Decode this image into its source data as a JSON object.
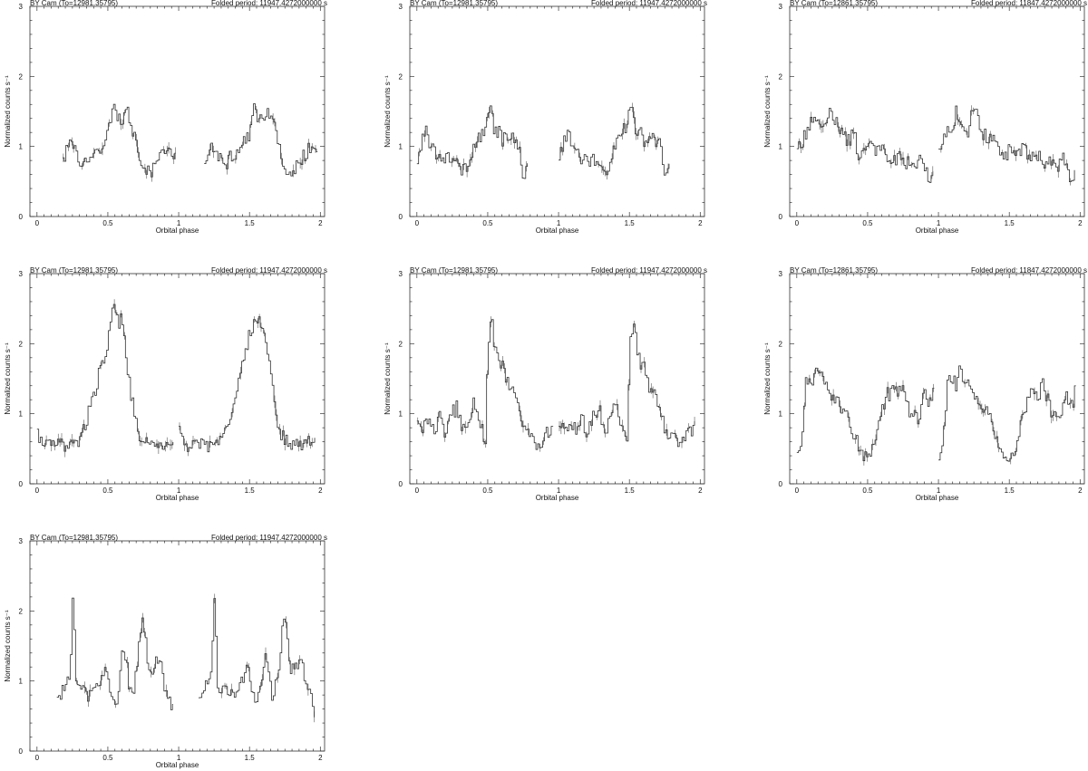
{
  "chart_data": [
    {
      "type": "line",
      "panel": 1,
      "title_left": "BY Cam (To=12981.35795)",
      "title_right": "Folded period: 11947.4272000000 s",
      "xlabel": "Orbital phase",
      "ylabel": "Normalized counts s⁻¹",
      "xlim": [
        -0.05,
        2.03
      ],
      "ylim": [
        0,
        3
      ],
      "x_ticks": [
        0,
        0.5,
        1,
        1.5,
        2
      ],
      "y_ticks": [
        0,
        1,
        2,
        3
      ],
      "x_tick_labels": [
        "0",
        "0.5",
        "1",
        "1.5",
        "2"
      ],
      "y_tick_labels": [
        "0",
        "1",
        "2",
        "3"
      ],
      "grid": false,
      "profile_phase": [
        0.18,
        0.2,
        0.23,
        0.26,
        0.29,
        0.32,
        0.35,
        0.38,
        0.41,
        0.44,
        0.47,
        0.5,
        0.53,
        0.56,
        0.59,
        0.62,
        0.65,
        0.68,
        0.71,
        0.74,
        0.77,
        0.8,
        0.83,
        0.86,
        0.89,
        0.92,
        0.95,
        0.98
      ],
      "profile_values": [
        0.85,
        0.9,
        1.0,
        0.95,
        0.85,
        0.75,
        0.8,
        0.9,
        0.85,
        0.95,
        1.1,
        1.2,
        1.5,
        1.45,
        1.35,
        1.5,
        1.4,
        1.2,
        1.0,
        0.7,
        0.65,
        0.6,
        0.75,
        0.8,
        0.9,
        1.0,
        0.95,
        0.85
      ]
    },
    {
      "type": "line",
      "panel": 2,
      "title_left": "BY Cam (To=12981.35795)",
      "title_right": "Folded period: 11947.4272000000 s",
      "xlabel": "Orbital phase",
      "ylabel": "Normalized counts s⁻¹",
      "xlim": [
        -0.05,
        2.03
      ],
      "ylim": [
        0,
        3
      ],
      "x_ticks": [
        0,
        0.5,
        1,
        1.5,
        2
      ],
      "y_ticks": [
        0,
        1,
        2,
        3
      ],
      "x_tick_labels": [
        "0",
        "0.5",
        "1",
        "1.5",
        "2"
      ],
      "y_tick_labels": [
        "0",
        "1",
        "2",
        "3"
      ],
      "grid": false,
      "profile_phase": [
        0.0,
        0.03,
        0.06,
        0.09,
        0.12,
        0.15,
        0.18,
        0.21,
        0.24,
        0.27,
        0.3,
        0.33,
        0.36,
        0.39,
        0.42,
        0.45,
        0.48,
        0.51,
        0.54,
        0.57,
        0.6,
        0.63,
        0.66,
        0.69,
        0.72,
        0.75,
        0.78
      ],
      "profile_values": [
        0.75,
        1.1,
        1.25,
        1.05,
        0.95,
        0.85,
        0.85,
        0.8,
        0.85,
        0.75,
        0.7,
        0.65,
        0.8,
        0.95,
        1.1,
        1.2,
        1.3,
        1.55,
        1.3,
        1.2,
        1.1,
        1.15,
        1.1,
        1.1,
        1.0,
        0.55,
        0.75
      ]
    },
    {
      "type": "line",
      "panel": 3,
      "title_left": "BY Cam (To=12861.35795)",
      "title_right": "Folded period: 11847.4272000000 s",
      "xlabel": "Orbital phase",
      "ylabel": "Normalized counts s⁻¹",
      "xlim": [
        -0.05,
        2.03
      ],
      "ylim": [
        0,
        3
      ],
      "x_ticks": [
        0,
        0.5,
        1,
        1.5,
        2
      ],
      "y_ticks": [
        0,
        1,
        2,
        3
      ],
      "x_tick_labels": [
        "0",
        "0.5",
        "1",
        "1.5",
        "2"
      ],
      "y_tick_labels": [
        "0",
        "1",
        "2",
        "3"
      ],
      "grid": false,
      "profile_phase": [
        0.0,
        0.04,
        0.08,
        0.12,
        0.16,
        0.2,
        0.24,
        0.28,
        0.32,
        0.36,
        0.4,
        0.44,
        0.48,
        0.52,
        0.56,
        0.6,
        0.64,
        0.68,
        0.72,
        0.76,
        0.8,
        0.84,
        0.88,
        0.92,
        0.96
      ],
      "profile_values": [
        0.95,
        1.1,
        1.3,
        1.45,
        1.3,
        1.2,
        1.55,
        1.35,
        1.15,
        1.1,
        1.15,
        0.85,
        0.9,
        1.0,
        0.95,
        1.0,
        0.85,
        0.8,
        0.85,
        0.75,
        0.8,
        0.7,
        0.85,
        0.55,
        0.6
      ]
    },
    {
      "type": "line",
      "panel": 4,
      "title_left": "BY Cam (To=12981.35795)",
      "title_right": "Folded period: 11947.4272000000 s",
      "xlabel": "Orbital phase",
      "ylabel": "Normalized counts s⁻¹",
      "xlim": [
        -0.05,
        2.03
      ],
      "ylim": [
        0,
        3
      ],
      "x_ticks": [
        0,
        0.5,
        1,
        1.5,
        2
      ],
      "y_ticks": [
        0,
        1,
        2,
        3
      ],
      "x_tick_labels": [
        "0",
        "0.5",
        "1",
        "1.5",
        "2"
      ],
      "y_tick_labels": [
        "0",
        "1",
        "2",
        "3"
      ],
      "grid": false,
      "profile_phase": [
        0.0,
        0.04,
        0.08,
        0.12,
        0.16,
        0.2,
        0.24,
        0.28,
        0.32,
        0.36,
        0.4,
        0.44,
        0.48,
        0.52,
        0.56,
        0.6,
        0.64,
        0.68,
        0.72,
        0.76,
        0.8,
        0.84,
        0.88,
        0.92,
        0.96
      ],
      "profile_values": [
        0.75,
        0.5,
        0.6,
        0.55,
        0.6,
        0.5,
        0.6,
        0.55,
        0.75,
        1.0,
        1.3,
        1.6,
        1.95,
        2.3,
        2.5,
        2.2,
        1.6,
        1.0,
        0.7,
        0.6,
        0.55,
        0.6,
        0.55,
        0.6,
        0.6
      ]
    },
    {
      "type": "line",
      "panel": 5,
      "title_left": "BY Cam (To=12981.35795)",
      "title_right": "Folded period: 11947.4272000000 s",
      "xlabel": "Orbital phase",
      "ylabel": "Normalized counts s⁻¹",
      "xlim": [
        -0.05,
        2.03
      ],
      "ylim": [
        0,
        3
      ],
      "x_ticks": [
        0,
        0.5,
        1,
        1.5,
        2
      ],
      "y_ticks": [
        0,
        1,
        2,
        3
      ],
      "x_tick_labels": [
        "0",
        "0.5",
        "1",
        "1.5",
        "2"
      ],
      "y_tick_labels": [
        "0",
        "1",
        "2",
        "3"
      ],
      "grid": false,
      "profile_phase": [
        0.0,
        0.04,
        0.08,
        0.12,
        0.16,
        0.2,
        0.24,
        0.28,
        0.32,
        0.36,
        0.4,
        0.44,
        0.48,
        0.5,
        0.52,
        0.56,
        0.6,
        0.64,
        0.68,
        0.72,
        0.76,
        0.8,
        0.84,
        0.88,
        0.92,
        0.96
      ],
      "profile_values": [
        0.85,
        0.8,
        0.85,
        0.75,
        0.95,
        0.7,
        1.0,
        1.1,
        0.75,
        0.9,
        1.2,
        0.85,
        0.6,
        2.0,
        2.35,
        1.8,
        1.65,
        1.4,
        1.3,
        1.0,
        0.7,
        0.75,
        0.55,
        0.6,
        0.75,
        0.8
      ]
    },
    {
      "type": "line",
      "panel": 6,
      "title_left": "BY Cam (To=12861.35795)",
      "title_right": "Folded period: 11847.4272000000 s",
      "xlabel": "Orbital phase",
      "ylabel": "Normalized counts s⁻¹",
      "xlim": [
        -0.05,
        2.03
      ],
      "ylim": [
        0,
        3
      ],
      "x_ticks": [
        0,
        0.5,
        1,
        1.5,
        2
      ],
      "y_ticks": [
        0,
        1,
        2,
        3
      ],
      "x_tick_labels": [
        "0",
        "0.5",
        "1",
        "1.5",
        "2"
      ],
      "y_tick_labels": [
        "0",
        "1",
        "2",
        "3"
      ],
      "grid": false,
      "profile_phase": [
        0.0,
        0.03,
        0.06,
        0.09,
        0.12,
        0.15,
        0.18,
        0.22,
        0.26,
        0.3,
        0.34,
        0.38,
        0.42,
        0.46,
        0.5,
        0.54,
        0.58,
        0.62,
        0.66,
        0.7,
        0.74,
        0.78,
        0.82,
        0.86,
        0.9,
        0.94,
        0.97
      ],
      "profile_values": [
        0.4,
        0.6,
        1.4,
        1.5,
        1.45,
        1.7,
        1.5,
        1.35,
        1.2,
        1.1,
        1.0,
        0.8,
        0.6,
        0.4,
        0.35,
        0.55,
        0.9,
        1.2,
        1.35,
        1.3,
        1.4,
        1.1,
        0.95,
        0.9,
        1.3,
        1.15,
        1.35
      ]
    },
    {
      "type": "line",
      "panel": 7,
      "title_left": "BY Cam (To=12981.35795)",
      "title_right": "Folded period: 11947.4272000000 s",
      "xlabel": "Orbital phase",
      "ylabel": "Normalized counts s⁻¹",
      "xlim": [
        -0.05,
        2.03
      ],
      "ylim": [
        0,
        3
      ],
      "x_ticks": [
        0,
        0.5,
        1,
        1.5,
        2
      ],
      "y_ticks": [
        0,
        1,
        2,
        3
      ],
      "x_tick_labels": [
        "0",
        "0.5",
        "1",
        "1.5",
        "2"
      ],
      "y_tick_labels": [
        "0",
        "1",
        "2",
        "3"
      ],
      "grid": false,
      "profile_phase": [
        0.14,
        0.17,
        0.2,
        0.23,
        0.25,
        0.27,
        0.3,
        0.33,
        0.36,
        0.39,
        0.42,
        0.45,
        0.48,
        0.51,
        0.54,
        0.57,
        0.6,
        0.63,
        0.66,
        0.69,
        0.72,
        0.75,
        0.78,
        0.81,
        0.84,
        0.87,
        0.9,
        0.93,
        0.96
      ],
      "profile_values": [
        0.7,
        0.85,
        1.0,
        1.15,
        2.2,
        1.0,
        0.85,
        0.9,
        0.8,
        0.85,
        0.9,
        1.0,
        1.15,
        0.9,
        0.65,
        0.8,
        1.4,
        1.2,
        0.75,
        1.0,
        1.6,
        1.85,
        1.1,
        1.2,
        1.25,
        1.2,
        0.9,
        0.75,
        0.55
      ]
    }
  ]
}
